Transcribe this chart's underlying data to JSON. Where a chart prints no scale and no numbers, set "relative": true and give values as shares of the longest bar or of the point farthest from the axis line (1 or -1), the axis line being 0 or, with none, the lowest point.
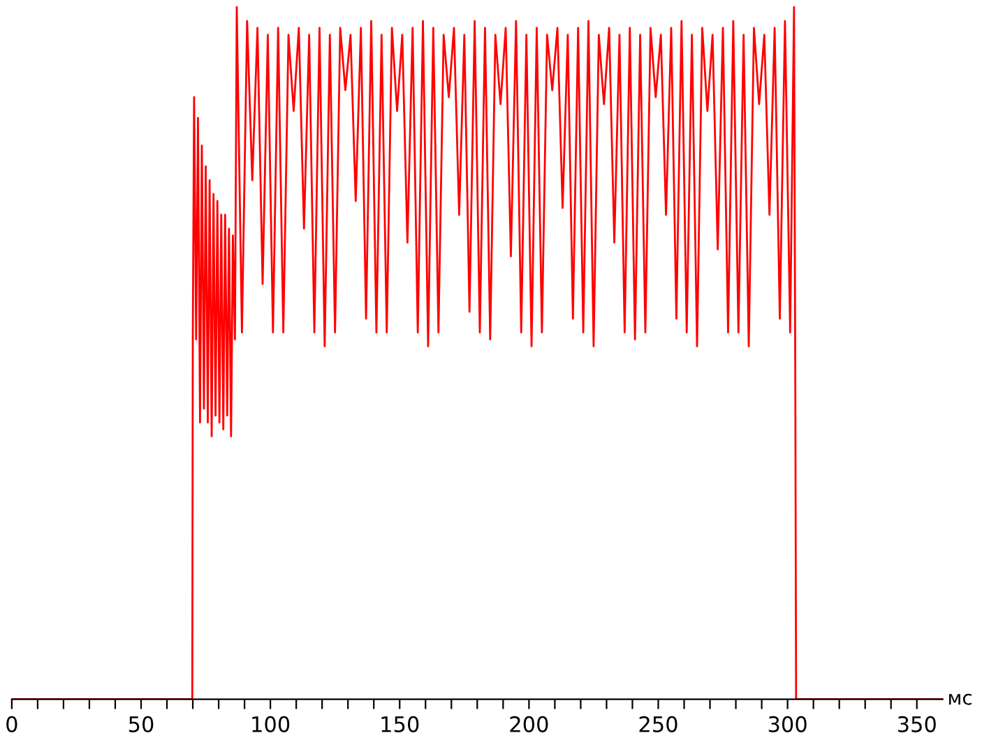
{
  "chart_data": {
    "type": "line",
    "relative": true,
    "xlabel": "мс",
    "xlim": [
      0,
      360
    ],
    "xticks": [
      0,
      {
        "value": 10,
        "label": null
      },
      {
        "value": 20,
        "label": null
      },
      {
        "value": 30,
        "label": null
      },
      {
        "value": 40,
        "label": null
      },
      50,
      {
        "value": 60,
        "label": null
      },
      {
        "value": 70,
        "label": null
      },
      {
        "value": 80,
        "label": null
      },
      {
        "value": 90,
        "label": null
      },
      100,
      {
        "value": 110,
        "label": null
      },
      {
        "value": 120,
        "label": null
      },
      {
        "value": 130,
        "label": null
      },
      {
        "value": 140,
        "label": null
      },
      150,
      {
        "value": 160,
        "label": null
      },
      {
        "value": 170,
        "label": null
      },
      {
        "value": 180,
        "label": null
      },
      {
        "value": 190,
        "label": null
      },
      200,
      {
        "value": 210,
        "label": null
      },
      {
        "value": 220,
        "label": null
      },
      {
        "value": 230,
        "label": null
      },
      {
        "value": 240,
        "label": null
      },
      250,
      {
        "value": 260,
        "label": null
      },
      {
        "value": 270,
        "label": null
      },
      {
        "value": 280,
        "label": null
      },
      {
        "value": 290,
        "label": null
      },
      300,
      {
        "value": 310,
        "label": null
      },
      {
        "value": 320,
        "label": null
      },
      {
        "value": 330,
        "label": null
      },
      {
        "value": 340,
        "label": null
      },
      350
    ],
    "grid": false,
    "marker": "none",
    "line_style": "solid",
    "series": [
      {
        "color": "#ff0000",
        "x": [
          0,
          69.8,
          70,
          70.5,
          71.3,
          72,
          72.8,
          73.5,
          74.3,
          75,
          75.8,
          76.5,
          77.3,
          78,
          78.8,
          79.5,
          80.3,
          81,
          81.8,
          82.5,
          83.3,
          84,
          84.8,
          85.5,
          86.3,
          87,
          89,
          91,
          93,
          95,
          97,
          99,
          101,
          103,
          105,
          107,
          109,
          111,
          113,
          115,
          117,
          119,
          121,
          123,
          125,
          127,
          129,
          131,
          133,
          135,
          137,
          139,
          141,
          143,
          145,
          147,
          149,
          151,
          153,
          155,
          157,
          159,
          161,
          163,
          165,
          167,
          169,
          171,
          173,
          175,
          177,
          179,
          181,
          183,
          185,
          187,
          189,
          191,
          193,
          195,
          197,
          199,
          201,
          203,
          205,
          207,
          209,
          211,
          213,
          215,
          217,
          219,
          221,
          223,
          225,
          227,
          229,
          231,
          233,
          235,
          237,
          239,
          241,
          243,
          245,
          247,
          249,
          251,
          253,
          255,
          257,
          259,
          261,
          263,
          265,
          267,
          269,
          271,
          273,
          275,
          277,
          279,
          281,
          283,
          285,
          287,
          289,
          291,
          293,
          295,
          297,
          299,
          301,
          302.5,
          303,
          303.3,
          360
        ],
        "values": [
          0,
          0,
          0.52,
          0.87,
          0.52,
          0.84,
          0.4,
          0.8,
          0.42,
          0.77,
          0.4,
          0.75,
          0.38,
          0.73,
          0.41,
          0.72,
          0.4,
          0.7,
          0.39,
          0.7,
          0.41,
          0.68,
          0.38,
          0.67,
          0.52,
          1.0,
          0.53,
          0.98,
          0.75,
          0.97,
          0.6,
          0.96,
          0.53,
          0.97,
          0.53,
          0.96,
          0.85,
          0.97,
          0.68,
          0.96,
          0.53,
          0.97,
          0.51,
          0.96,
          0.53,
          0.97,
          0.88,
          0.96,
          0.72,
          0.97,
          0.55,
          0.98,
          0.53,
          0.96,
          0.53,
          0.97,
          0.85,
          0.96,
          0.66,
          0.97,
          0.53,
          0.98,
          0.51,
          0.97,
          0.53,
          0.96,
          0.87,
          0.97,
          0.7,
          0.96,
          0.56,
          0.98,
          0.53,
          0.97,
          0.52,
          0.96,
          0.86,
          0.97,
          0.64,
          0.98,
          0.53,
          0.96,
          0.51,
          0.97,
          0.53,
          0.96,
          0.88,
          0.97,
          0.71,
          0.96,
          0.55,
          0.97,
          0.53,
          0.98,
          0.51,
          0.96,
          0.86,
          0.97,
          0.66,
          0.96,
          0.53,
          0.97,
          0.52,
          0.96,
          0.53,
          0.97,
          0.87,
          0.96,
          0.7,
          0.97,
          0.55,
          0.98,
          0.53,
          0.96,
          0.51,
          0.97,
          0.85,
          0.96,
          0.65,
          0.97,
          0.53,
          0.98,
          0.53,
          0.96,
          0.51,
          0.97,
          0.86,
          0.96,
          0.7,
          0.97,
          0.55,
          0.98,
          0.53,
          1.0,
          0.45,
          0,
          0
        ]
      }
    ]
  }
}
